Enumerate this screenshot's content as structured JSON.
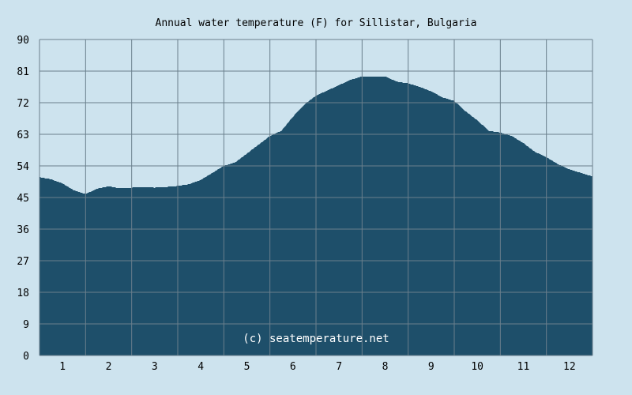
{
  "chart_data": {
    "type": "area",
    "title": "Annual water temperature (F) for Sillistar, Bulgaria",
    "watermark": "(c) seatemperature.net",
    "xlabel": "",
    "ylabel": "",
    "x_tick_labels": [
      "1",
      "2",
      "3",
      "4",
      "5",
      "6",
      "7",
      "8",
      "9",
      "10",
      "11",
      "12"
    ],
    "y_tick_labels": [
      "0",
      "9",
      "18",
      "27",
      "36",
      "45",
      "54",
      "63",
      "72",
      "81",
      "90"
    ],
    "ylim": [
      0,
      90
    ],
    "xlim": [
      0.5,
      12.5
    ],
    "grid": true,
    "x": [
      0.5,
      0.75,
      1.0,
      1.25,
      1.5,
      1.75,
      2.0,
      2.25,
      2.5,
      2.75,
      3.0,
      3.25,
      3.5,
      3.75,
      4.0,
      4.25,
      4.5,
      4.75,
      5.0,
      5.25,
      5.5,
      5.75,
      6.0,
      6.25,
      6.5,
      6.75,
      7.0,
      7.25,
      7.5,
      7.75,
      8.0,
      8.25,
      8.5,
      8.75,
      9.0,
      9.25,
      9.5,
      9.75,
      10.0,
      10.25,
      10.5,
      10.75,
      11.0,
      11.25,
      11.5,
      11.75,
      12.0,
      12.25,
      12.5
    ],
    "values": [
      50.8,
      50.2,
      49.0,
      47.0,
      46.0,
      47.5,
      48.2,
      47.6,
      47.8,
      48.0,
      47.8,
      48.0,
      48.3,
      48.8,
      50.0,
      52.0,
      54.0,
      55.0,
      57.5,
      60.0,
      62.5,
      64.0,
      68.0,
      71.5,
      74.0,
      75.5,
      77.0,
      78.5,
      79.5,
      79.5,
      79.5,
      78.0,
      77.5,
      76.5,
      75.2,
      73.5,
      72.5,
      69.5,
      67.0,
      64.0,
      63.5,
      62.5,
      60.5,
      58.0,
      56.5,
      54.5,
      53.0,
      52.0,
      51.0
    ],
    "colors": {
      "background": "#cde3ee",
      "fill": "#1e4f6a",
      "grid": "#6a7f8c",
      "text": "#000000",
      "watermark": "#ffffff"
    }
  }
}
